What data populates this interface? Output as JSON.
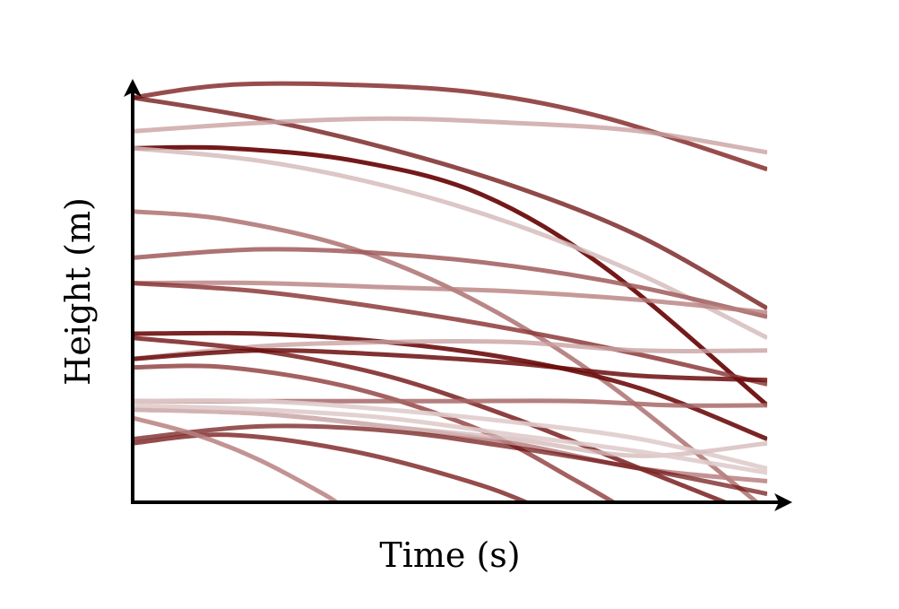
{
  "chart_data": {
    "type": "line",
    "title": "",
    "xlabel": "Time (s)",
    "ylabel": "Height (m)",
    "xlim": [
      0,
      1
    ],
    "ylim": [
      0,
      1
    ],
    "grid": false,
    "legend": "none",
    "x_ticks": [],
    "y_ticks": [],
    "series": [
      {
        "color": "#8d3a3a",
        "opacity": 0.9,
        "points": [
          [
            0,
            0.96
          ],
          [
            0.15,
            0.99
          ],
          [
            0.35,
            0.99
          ],
          [
            0.55,
            0.97
          ],
          [
            0.75,
            0.91
          ],
          [
            1,
            0.79
          ]
        ]
      },
      {
        "color": "#6b0d0d",
        "opacity": 0.75,
        "points": [
          [
            0,
            0.96
          ],
          [
            0.2,
            0.91
          ],
          [
            0.4,
            0.84
          ],
          [
            0.6,
            0.75
          ],
          [
            0.8,
            0.63
          ],
          [
            1,
            0.46
          ]
        ]
      },
      {
        "color": "#c9a1a1",
        "opacity": 0.8,
        "points": [
          [
            0,
            0.88
          ],
          [
            0.2,
            0.9
          ],
          [
            0.4,
            0.91
          ],
          [
            0.6,
            0.9
          ],
          [
            0.8,
            0.88
          ],
          [
            1,
            0.83
          ]
        ]
      },
      {
        "color": "#6b0d0d",
        "opacity": 0.95,
        "points": [
          [
            0,
            0.84
          ],
          [
            0.15,
            0.84
          ],
          [
            0.35,
            0.81
          ],
          [
            0.55,
            0.73
          ],
          [
            0.75,
            0.55
          ],
          [
            1,
            0.23
          ]
        ]
      },
      {
        "color": "#d6bcbc",
        "opacity": 0.85,
        "points": [
          [
            0,
            0.84
          ],
          [
            0.2,
            0.81
          ],
          [
            0.4,
            0.75
          ],
          [
            0.6,
            0.66
          ],
          [
            0.8,
            0.54
          ],
          [
            1,
            0.39
          ]
        ]
      },
      {
        "color": "#a86868",
        "opacity": 0.8,
        "points": [
          [
            0,
            0.69
          ],
          [
            0.15,
            0.67
          ],
          [
            0.35,
            0.6
          ],
          [
            0.55,
            0.47
          ],
          [
            0.75,
            0.28
          ],
          [
            1,
            -0.02
          ]
        ]
      },
      {
        "color": "#a05a5a",
        "opacity": 0.85,
        "points": [
          [
            0,
            0.58
          ],
          [
            0.2,
            0.6
          ],
          [
            0.4,
            0.59
          ],
          [
            0.6,
            0.56
          ],
          [
            0.8,
            0.51
          ],
          [
            1,
            0.44
          ]
        ]
      },
      {
        "color": "#b88080",
        "opacity": 0.8,
        "points": [
          [
            0,
            0.52
          ],
          [
            0.2,
            0.52
          ],
          [
            0.4,
            0.51
          ],
          [
            0.6,
            0.5
          ],
          [
            0.8,
            0.48
          ],
          [
            1,
            0.45
          ]
        ]
      },
      {
        "color": "#8d3a3a",
        "opacity": 0.85,
        "points": [
          [
            0,
            0.52
          ],
          [
            0.2,
            0.5
          ],
          [
            0.4,
            0.46
          ],
          [
            0.6,
            0.41
          ],
          [
            0.8,
            0.35
          ],
          [
            1,
            0.28
          ]
        ]
      },
      {
        "color": "#6b0d0d",
        "opacity": 0.9,
        "points": [
          [
            0,
            0.4
          ],
          [
            0.2,
            0.4
          ],
          [
            0.4,
            0.38
          ],
          [
            0.6,
            0.34
          ],
          [
            0.8,
            0.27
          ],
          [
            1,
            0.15
          ]
        ]
      },
      {
        "color": "#c9a1a1",
        "opacity": 0.8,
        "points": [
          [
            0,
            0.34
          ],
          [
            0.2,
            0.37
          ],
          [
            0.4,
            0.38
          ],
          [
            0.6,
            0.38
          ],
          [
            0.8,
            0.36
          ],
          [
            1,
            0.36
          ]
        ]
      },
      {
        "color": "#7a1f1f",
        "opacity": 0.85,
        "points": [
          [
            0,
            0.39
          ],
          [
            0.2,
            0.36
          ],
          [
            0.4,
            0.3
          ],
          [
            0.6,
            0.2
          ],
          [
            0.8,
            0.08
          ],
          [
            1,
            -0.04
          ]
        ]
      },
      {
        "color": "#6b0d0d",
        "opacity": 0.85,
        "points": [
          [
            0,
            0.34
          ],
          [
            0.2,
            0.36
          ],
          [
            0.4,
            0.35
          ],
          [
            0.6,
            0.33
          ],
          [
            0.8,
            0.3
          ],
          [
            1,
            0.29
          ]
        ]
      },
      {
        "color": "#8d3a3a",
        "opacity": 0.8,
        "points": [
          [
            0,
            0.32
          ],
          [
            0.15,
            0.32
          ],
          [
            0.35,
            0.27
          ],
          [
            0.55,
            0.17
          ],
          [
            0.7,
            0.05
          ],
          [
            0.78,
            -0.02
          ]
        ]
      },
      {
        "color": "#a86868",
        "opacity": 0.85,
        "points": [
          [
            0,
            0.24
          ],
          [
            0.3,
            0.24
          ],
          [
            0.5,
            0.24
          ],
          [
            0.7,
            0.24
          ],
          [
            0.85,
            0.23
          ],
          [
            1,
            0.23
          ]
        ]
      },
      {
        "color": "#e0cccc",
        "opacity": 0.9,
        "points": [
          [
            0,
            0.24
          ],
          [
            0.2,
            0.24
          ],
          [
            0.4,
            0.22
          ],
          [
            0.6,
            0.19
          ],
          [
            0.8,
            0.15
          ],
          [
            1,
            0.08
          ]
        ]
      },
      {
        "color": "#b88080",
        "opacity": 0.85,
        "points": [
          [
            0,
            0.22
          ],
          [
            0.2,
            0.21
          ],
          [
            0.4,
            0.18
          ],
          [
            0.6,
            0.14
          ],
          [
            0.8,
            0.08
          ],
          [
            1,
            0.05
          ]
        ]
      },
      {
        "color": "#6b0d0d",
        "opacity": 0.7,
        "points": [
          [
            0,
            0.15
          ],
          [
            0.2,
            0.18
          ],
          [
            0.4,
            0.17
          ],
          [
            0.6,
            0.13
          ],
          [
            0.8,
            0.08
          ],
          [
            1,
            0.02
          ]
        ]
      },
      {
        "color": "#7a1f1f",
        "opacity": 0.8,
        "points": [
          [
            0,
            0.14
          ],
          [
            0.15,
            0.16
          ],
          [
            0.35,
            0.12
          ],
          [
            0.55,
            0.04
          ],
          [
            0.65,
            -0.02
          ]
        ]
      },
      {
        "color": "#d6bcbc",
        "opacity": 0.8,
        "points": [
          [
            0,
            0.22
          ],
          [
            0.2,
            0.21
          ],
          [
            0.4,
            0.18
          ],
          [
            0.6,
            0.15
          ],
          [
            0.8,
            0.11
          ],
          [
            1,
            0.14
          ]
        ]
      },
      {
        "color": "#b88080",
        "opacity": 0.85,
        "points": [
          [
            0,
            0.2
          ],
          [
            0.1,
            0.16
          ],
          [
            0.2,
            0.1
          ],
          [
            0.3,
            0.02
          ],
          [
            0.33,
            -0.01
          ]
        ]
      },
      {
        "color": "#e0cccc",
        "opacity": 0.9,
        "points": [
          [
            0,
            0.23
          ],
          [
            0.2,
            0.22
          ],
          [
            0.4,
            0.2
          ],
          [
            0.6,
            0.16
          ],
          [
            0.8,
            0.12
          ],
          [
            1,
            0.07
          ]
        ]
      }
    ]
  }
}
